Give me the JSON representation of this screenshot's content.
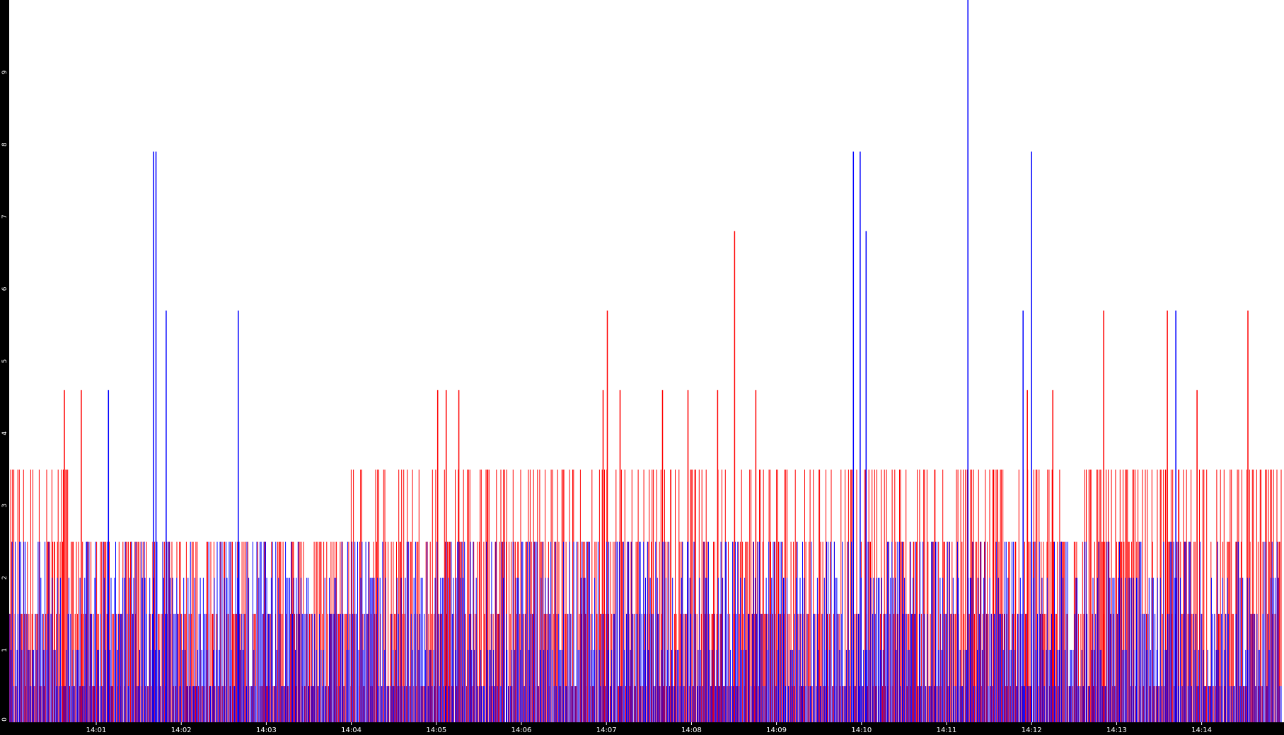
{
  "chart_data": {
    "type": "bar",
    "title": "",
    "xlabel": "",
    "ylabel": "",
    "ylim": [
      0,
      10
    ],
    "grid": false,
    "legend": "none",
    "background_color": "#ffffff",
    "axis_band_color": "#000000",
    "tick_label_color": "#ffffff",
    "y_ticks": [
      "0",
      "1",
      "2",
      "3",
      "4",
      "5",
      "6",
      "7",
      "8",
      "9"
    ],
    "x_ticks": [
      "14:01",
      "14:02",
      "14:03",
      "14:04",
      "14:05",
      "14:06",
      "14:07",
      "14:08",
      "14:09",
      "14:10",
      "14:11",
      "14:12",
      "14:13",
      "14:14"
    ],
    "x_range_minutes": [
      14.0,
      14.975
    ],
    "series": [
      {
        "color": "#ff0000",
        "bar_count": 1200,
        "base_levels": [
          {
            "from": "14:00",
            "to": "14:00.7",
            "values": [
              0.5,
              1.5,
              2.5,
              3.5
            ]
          },
          {
            "from": "14:00.7",
            "to": "14:04",
            "values": [
              0.5,
              1.5,
              2.5
            ]
          },
          {
            "from": "14:04",
            "to": "14:15",
            "values": [
              0.5,
              1.5,
              2.5,
              3.5
            ]
          }
        ],
        "spikes": [
          {
            "t": "14:00.65",
            "value": 4.6
          },
          {
            "t": "14:00.85",
            "value": 4.6
          },
          {
            "t": "14:05.05",
            "value": 4.6
          },
          {
            "t": "14:05.15",
            "value": 4.6
          },
          {
            "t": "14:05.3",
            "value": 4.6
          },
          {
            "t": "14:07.05",
            "value": 5.7
          },
          {
            "t": "14:07.0",
            "value": 4.6
          },
          {
            "t": "14:07.2",
            "value": 4.6
          },
          {
            "t": "14:07.7",
            "value": 4.6
          },
          {
            "t": "14:08.0",
            "value": 4.6
          },
          {
            "t": "14:08.35",
            "value": 4.6
          },
          {
            "t": "14:08.55",
            "value": 6.8
          },
          {
            "t": "14:08.8",
            "value": 4.6
          },
          {
            "t": "14:12.0",
            "value": 4.6
          },
          {
            "t": "14:12.3",
            "value": 4.6
          },
          {
            "t": "14:12.9",
            "value": 5.7
          },
          {
            "t": "14:13.65",
            "value": 5.7
          },
          {
            "t": "14:14.6",
            "value": 5.7
          },
          {
            "t": "14:14.0",
            "value": 4.6
          }
        ]
      },
      {
        "color": "#0000ff",
        "bar_count": 900,
        "base_levels": [
          {
            "from": "14:00",
            "to": "14:15",
            "values": [
              0.5,
              1,
              1.5,
              2,
              2.5
            ]
          }
        ],
        "spikes": [
          {
            "t": "14:01.17",
            "value": 4.6
          },
          {
            "t": "14:01.7",
            "value": 7.9
          },
          {
            "t": "14:01.73",
            "value": 7.9
          },
          {
            "t": "14:01.85",
            "value": 5.7
          },
          {
            "t": "14:02.7",
            "value": 5.7
          },
          {
            "t": "14:09.95",
            "value": 7.9
          },
          {
            "t": "14:10.03",
            "value": 7.9
          },
          {
            "t": "14:10.1",
            "value": 6.8
          },
          {
            "t": "14:11.3",
            "value": 10
          },
          {
            "t": "14:12.05",
            "value": 7.9
          },
          {
            "t": "14:11.95",
            "value": 5.7
          },
          {
            "t": "14:13.75",
            "value": 5.7
          }
        ]
      }
    ]
  }
}
